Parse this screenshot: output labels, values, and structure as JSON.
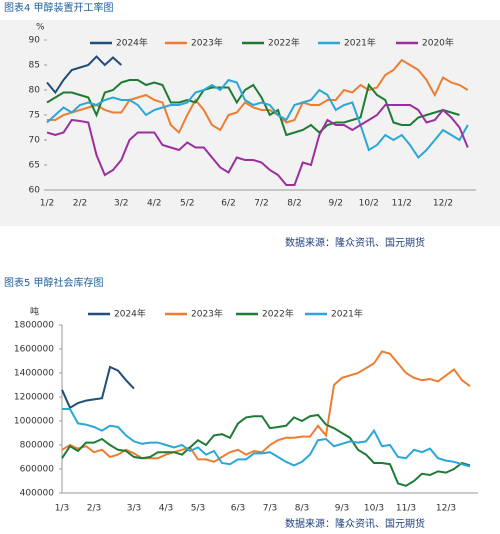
{
  "chart_data": [
    {
      "type": "line",
      "title": "图表4 甲醇装置开工率图",
      "y_unit": "%",
      "source": "数据来源：隆众资讯、国元期货",
      "plot_background": "#f2f2f2",
      "categories": [
        "1/2",
        null,
        null,
        null,
        "2/2",
        null,
        null,
        null,
        null,
        "3/2",
        null,
        null,
        null,
        "4/2",
        null,
        null,
        null,
        "5/2",
        null,
        null,
        null,
        null,
        "6/2",
        null,
        null,
        null,
        "7/2",
        null,
        null,
        null,
        "8/2",
        null,
        null,
        null,
        null,
        "9/2",
        null,
        null,
        null,
        "10/2",
        null,
        null,
        null,
        "11/2",
        null,
        null,
        null,
        null,
        "12/2",
        null,
        null,
        null
      ],
      "ylim": [
        60,
        90
      ],
      "yticks": [
        60,
        65,
        70,
        75,
        80,
        85,
        90
      ],
      "series": [
        {
          "name": "2024年",
          "color": "#1f4e79",
          "values": [
            81.5,
            79.5,
            82,
            84,
            84.5,
            85,
            86.7,
            85,
            86.5,
            85,
            null,
            null,
            null,
            null,
            null,
            null,
            null,
            null,
            null,
            null,
            null,
            null,
            null,
            null,
            null,
            null,
            null,
            null,
            null,
            null,
            null,
            null,
            null,
            null,
            null,
            null,
            null,
            null,
            null,
            null,
            null,
            null,
            null,
            null,
            null,
            null,
            null,
            null,
            null,
            null,
            null,
            null
          ]
        },
        {
          "name": "2023年",
          "color": "#ed7d31",
          "values": [
            74,
            74,
            75,
            75.5,
            76,
            76.5,
            77,
            76,
            75.5,
            75.5,
            78,
            78.5,
            79,
            78,
            77.5,
            73,
            71.5,
            75,
            78,
            76,
            73,
            72,
            75,
            75.5,
            77.5,
            76.5,
            76,
            76,
            75,
            73.5,
            74,
            77.5,
            77,
            77,
            78,
            78,
            80,
            79.5,
            81,
            80,
            80.5,
            83,
            84,
            86,
            85,
            84,
            82,
            79,
            82.5,
            81.5,
            81,
            80
          ]
        },
        {
          "name": "2022年",
          "color": "#1e7b34",
          "values": [
            77.5,
            78.5,
            79.5,
            79.5,
            79,
            78.5,
            75,
            79.5,
            80,
            81.5,
            82,
            82,
            81,
            81.5,
            81,
            77.5,
            77.5,
            78,
            77.5,
            80,
            80.5,
            80.5,
            80.5,
            77.5,
            80,
            81,
            78.5,
            75,
            76,
            71,
            71.5,
            72,
            73,
            71.5,
            73,
            73.5,
            73.5,
            74,
            74.5,
            81,
            79,
            78,
            73.5,
            73,
            73,
            74.5,
            75,
            75.5,
            76,
            75.5,
            75,
            null
          ]
        },
        {
          "name": "2021年",
          "color": "#2aa7d8",
          "values": [
            73.5,
            75,
            76.5,
            75.5,
            77,
            77.5,
            77,
            78,
            78.5,
            78,
            78,
            77,
            75,
            76,
            76.5,
            77,
            77,
            77.5,
            79.5,
            80,
            81,
            80,
            82,
            81.5,
            78,
            77,
            77.5,
            77,
            75,
            74,
            77,
            77.5,
            78,
            80,
            79,
            76,
            77,
            77.5,
            73,
            68,
            69,
            71,
            70,
            71,
            69,
            66.5,
            68,
            70,
            72,
            71,
            70,
            73
          ]
        },
        {
          "name": "2020年",
          "color": "#9c2f9f",
          "values": [
            71.5,
            71,
            71.5,
            74,
            73.8,
            73.5,
            67,
            63,
            64,
            66,
            70,
            71.5,
            71.5,
            71.5,
            69,
            68.5,
            68,
            69.5,
            68.5,
            68.5,
            66.5,
            64.5,
            63.5,
            66.5,
            66,
            66,
            65.5,
            64,
            63,
            61,
            61,
            65.5,
            65,
            71,
            74,
            73,
            73,
            72,
            73,
            74,
            75,
            77,
            77,
            77,
            77,
            76,
            73.5,
            74,
            76,
            74.5,
            72.5,
            68.5
          ]
        }
      ]
    },
    {
      "type": "line",
      "title": "图表5 甲醇社会库存图",
      "y_unit": "吨",
      "source": "数据来源：隆众资讯、国元期货",
      "plot_background": "#ffffff",
      "categories": [
        "1/3",
        null,
        null,
        null,
        "2/3",
        null,
        null,
        null,
        null,
        "3/3",
        null,
        null,
        null,
        "4/3",
        null,
        null,
        null,
        "5/3",
        null,
        null,
        null,
        null,
        "6/3",
        null,
        null,
        null,
        "7/3",
        null,
        null,
        null,
        "8/3",
        null,
        null,
        null,
        null,
        "9/3",
        null,
        null,
        null,
        "10/3",
        null,
        null,
        null,
        "11/3",
        null,
        null,
        null,
        null,
        "12/3",
        null,
        null,
        null
      ],
      "ylim": [
        400000,
        1800000
      ],
      "yticks": [
        400000,
        600000,
        800000,
        1000000,
        1200000,
        1400000,
        1600000,
        1800000
      ],
      "series": [
        {
          "name": "2024年",
          "color": "#1f4e79",
          "values": [
            1260000,
            1110000,
            1150000,
            1170000,
            1180000,
            1190000,
            1450000,
            1420000,
            1340000,
            1270000,
            null,
            null,
            null,
            null,
            null,
            null,
            null,
            null,
            null,
            null,
            null,
            null,
            null,
            null,
            null,
            null,
            null,
            null,
            null,
            null,
            null,
            null,
            null,
            null,
            null,
            null,
            null,
            null,
            null,
            null,
            null,
            null,
            null,
            null,
            null,
            null,
            null,
            null,
            null,
            null,
            null,
            null
          ]
        },
        {
          "name": "2023年",
          "color": "#ed7d31",
          "values": [
            760000,
            800000,
            770000,
            790000,
            740000,
            760000,
            700000,
            720000,
            760000,
            730000,
            690000,
            690000,
            690000,
            720000,
            740000,
            760000,
            780000,
            680000,
            680000,
            660000,
            700000,
            740000,
            760000,
            720000,
            750000,
            740000,
            800000,
            840000,
            860000,
            860000,
            870000,
            870000,
            960000,
            880000,
            1300000,
            1360000,
            1380000,
            1400000,
            1440000,
            1480000,
            1580000,
            1560000,
            1480000,
            1400000,
            1360000,
            1340000,
            1350000,
            1330000,
            1380000,
            1430000,
            1340000,
            1290000
          ]
        },
        {
          "name": "2022年",
          "color": "#1e7b34",
          "values": [
            690000,
            790000,
            750000,
            820000,
            820000,
            850000,
            800000,
            760000,
            750000,
            700000,
            690000,
            700000,
            740000,
            740000,
            740000,
            720000,
            780000,
            840000,
            800000,
            880000,
            890000,
            860000,
            980000,
            1030000,
            1040000,
            1040000,
            940000,
            950000,
            960000,
            1030000,
            1000000,
            1040000,
            1050000,
            970000,
            940000,
            900000,
            860000,
            760000,
            720000,
            650000,
            650000,
            640000,
            480000,
            460000,
            500000,
            560000,
            550000,
            580000,
            570000,
            600000,
            650000,
            630000
          ]
        },
        {
          "name": "2021年",
          "color": "#2aa7d8",
          "values": [
            1100000,
            1100000,
            980000,
            970000,
            950000,
            920000,
            960000,
            950000,
            880000,
            830000,
            810000,
            820000,
            820000,
            800000,
            780000,
            800000,
            750000,
            780000,
            720000,
            750000,
            650000,
            640000,
            680000,
            680000,
            730000,
            730000,
            740000,
            700000,
            660000,
            630000,
            660000,
            720000,
            840000,
            850000,
            790000,
            810000,
            830000,
            820000,
            830000,
            920000,
            790000,
            800000,
            700000,
            690000,
            760000,
            740000,
            770000,
            690000,
            670000,
            660000,
            640000,
            620000
          ]
        }
      ]
    }
  ]
}
